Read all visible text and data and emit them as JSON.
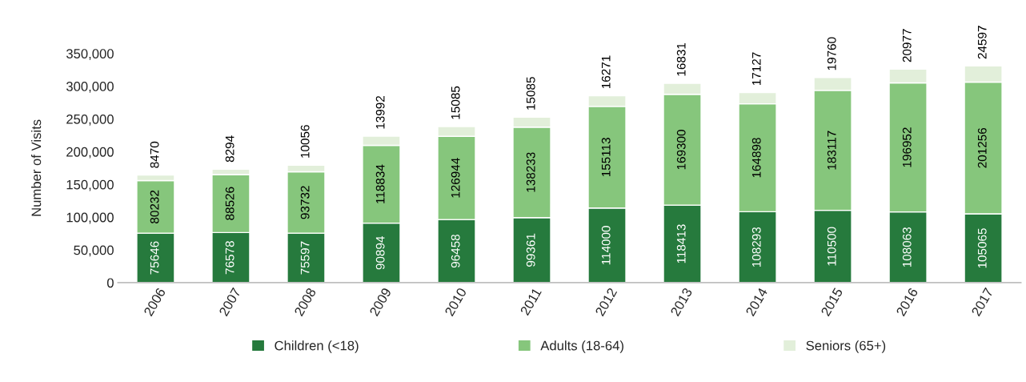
{
  "chart_data": {
    "type": "bar",
    "stacked": true,
    "ylabel": "Number of Visits",
    "categories": [
      "2006",
      "2007",
      "2008",
      "2009",
      "2010",
      "2011",
      "2012",
      "2013",
      "2014",
      "2015",
      "2016",
      "2017"
    ],
    "series": [
      {
        "name": "Children (<18)",
        "color": "#267a3d",
        "values": [
          75646,
          76578,
          75597,
          90894,
          96458,
          99361,
          114000,
          118413,
          108293,
          110500,
          108063,
          105065
        ]
      },
      {
        "name": "Adults (18-64)",
        "color": "#86c67c",
        "values": [
          80232,
          88526,
          93732,
          118834,
          126944,
          138233,
          155113,
          169300,
          164898,
          183117,
          196952,
          201256
        ]
      },
      {
        "name": "Seniors (65+)",
        "color": "#e2efda",
        "values": [
          8470,
          8294,
          10056,
          13992,
          15085,
          15085,
          16271,
          16831,
          17127,
          19760,
          20977,
          24597
        ]
      }
    ],
    "ylim": [
      0,
      350000
    ],
    "yticks": [
      0,
      {
        "value": 50000,
        "label": "50,000"
      },
      {
        "value": 100000,
        "label": "100,000"
      },
      {
        "value": 150000,
        "label": "150,000"
      },
      {
        "value": 200000,
        "label": "200,000"
      },
      {
        "value": 250000,
        "label": "250,000"
      },
      {
        "value": 300000,
        "label": "300,000"
      },
      {
        "value": 350000,
        "label": "350,000"
      }
    ],
    "data_labels": true,
    "grid": false,
    "legend": "bottom"
  }
}
